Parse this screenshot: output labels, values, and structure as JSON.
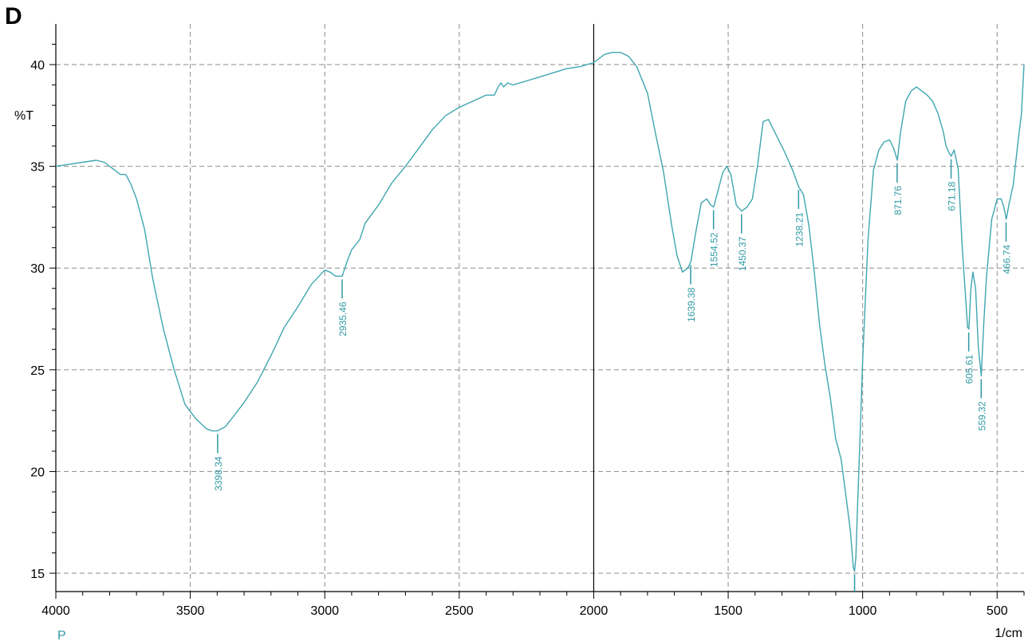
{
  "panel_label": "D",
  "chart_data": {
    "type": "line",
    "title": "",
    "ylabel": "%T",
    "xlabel": "1/cm",
    "x_extra_label": "P",
    "xlim": [
      4000,
      400
    ],
    "ylim": [
      14.1,
      42
    ],
    "x_ticks": [
      4000,
      3500,
      3000,
      2500,
      2000,
      1500,
      1000,
      500
    ],
    "x_tick_labels": [
      "4000",
      "3500",
      "3000",
      "2500",
      "2000",
      "1500",
      "1000",
      "500"
    ],
    "y_ticks": [
      15,
      20,
      25,
      30,
      35,
      40
    ],
    "y_tick_labels": [
      "15",
      "20",
      "25",
      "30",
      "35",
      "40"
    ],
    "grid": true,
    "reference_line_x": 2000,
    "colors": {
      "series": "#3fa6b0",
      "label": "#2f9aa4",
      "grid": "#8c8c8c",
      "axis": "#000000",
      "unit": "#2f9aa4"
    },
    "series": [
      {
        "x": [
          4000,
          3950,
          3900,
          3850,
          3820,
          3800,
          3780,
          3760,
          3740,
          3720,
          3700,
          3670,
          3640,
          3600,
          3560,
          3520,
          3480,
          3440,
          3420,
          3398,
          3370,
          3340,
          3300,
          3250,
          3200,
          3150,
          3100,
          3050,
          3000,
          2980,
          2960,
          2935,
          2915,
          2900,
          2870,
          2850,
          2800,
          2750,
          2700,
          2650,
          2600,
          2550,
          2500,
          2450,
          2400,
          2370,
          2355,
          2345,
          2335,
          2320,
          2300,
          2250,
          2200,
          2150,
          2100,
          2050,
          2000,
          1960,
          1930,
          1900,
          1870,
          1840,
          1800,
          1770,
          1740,
          1710,
          1690,
          1670,
          1650,
          1639,
          1620,
          1600,
          1580,
          1565,
          1554,
          1540,
          1520,
          1505,
          1490,
          1470,
          1450,
          1430,
          1410,
          1390,
          1370,
          1350,
          1320,
          1290,
          1260,
          1238,
          1220,
          1200,
          1180,
          1160,
          1140,
          1120,
          1100,
          1080,
          1060,
          1045,
          1035,
          1030,
          1025,
          1020,
          1010,
          1000,
          980,
          960,
          940,
          920,
          900,
          885,
          871,
          860,
          840,
          820,
          800,
          780,
          760,
          740,
          720,
          700,
          690,
          680,
          671,
          660,
          645,
          630,
          620,
          610,
          605,
          598,
          590,
          580,
          570,
          559,
          550,
          540,
          520,
          500,
          485,
          475,
          466,
          455,
          440,
          420,
          410,
          400
        ],
        "y": [
          35.0,
          35.1,
          35.2,
          35.3,
          35.2,
          35.0,
          34.8,
          34.6,
          34.6,
          34.1,
          33.4,
          31.9,
          29.5,
          27.0,
          25.0,
          23.3,
          22.6,
          22.1,
          22.0,
          22.0,
          22.2,
          22.7,
          23.4,
          24.4,
          25.7,
          27.1,
          28.1,
          29.2,
          29.9,
          29.8,
          29.6,
          29.6,
          30.4,
          30.9,
          31.4,
          32.2,
          33.1,
          34.2,
          35.0,
          35.9,
          36.8,
          37.5,
          37.9,
          38.2,
          38.5,
          38.5,
          38.9,
          39.1,
          38.9,
          39.1,
          39.0,
          39.2,
          39.4,
          39.6,
          39.8,
          39.9,
          40.1,
          40.5,
          40.6,
          40.6,
          40.4,
          39.9,
          38.6,
          36.6,
          34.7,
          32.1,
          30.6,
          29.8,
          30.0,
          30.3,
          31.8,
          33.2,
          33.4,
          33.1,
          33.0,
          33.7,
          34.7,
          35.0,
          34.6,
          33.1,
          32.8,
          33.0,
          33.4,
          35.1,
          37.2,
          37.3,
          36.5,
          35.7,
          34.8,
          34.0,
          33.6,
          32.1,
          29.8,
          27.2,
          25.2,
          23.6,
          21.6,
          20.6,
          18.6,
          17.0,
          15.3,
          15.1,
          15.8,
          17.9,
          21.6,
          25.5,
          31.4,
          34.8,
          35.8,
          36.2,
          36.3,
          35.9,
          35.3,
          36.6,
          38.2,
          38.7,
          38.9,
          38.7,
          38.5,
          38.2,
          37.6,
          36.7,
          36.0,
          35.7,
          35.5,
          35.8,
          34.9,
          31.1,
          29.1,
          27.1,
          27.0,
          28.9,
          29.8,
          29.0,
          26.1,
          24.7,
          27.2,
          29.5,
          32.4,
          33.4,
          33.4,
          33.0,
          32.4,
          33.2,
          34.1,
          36.5,
          37.5,
          40.0
        ]
      }
    ],
    "annotations": [
      {
        "label": "3398.34",
        "x": 3398.34,
        "y": 22.0
      },
      {
        "label": "2935.46",
        "x": 2935.46,
        "y": 29.6
      },
      {
        "label": "1639.38",
        "x": 1639.38,
        "y": 30.3
      },
      {
        "label": "1554.52",
        "x": 1554.52,
        "y": 33.0
      },
      {
        "label": "1450.37",
        "x": 1450.37,
        "y": 32.8
      },
      {
        "label": "1238.21",
        "x": 1238.21,
        "y": 34.0
      },
      {
        "label": "871.76",
        "x": 871.76,
        "y": 35.3
      },
      {
        "label": "671.18",
        "x": 671.18,
        "y": 35.5
      },
      {
        "label": "605.61",
        "x": 605.61,
        "y": 27.0
      },
      {
        "label": "559.32",
        "x": 559.32,
        "y": 24.7
      },
      {
        "label": "466.74",
        "x": 466.74,
        "y": 32.4
      },
      {
        "label": "",
        "x": 1030,
        "y": 15.1
      }
    ]
  }
}
